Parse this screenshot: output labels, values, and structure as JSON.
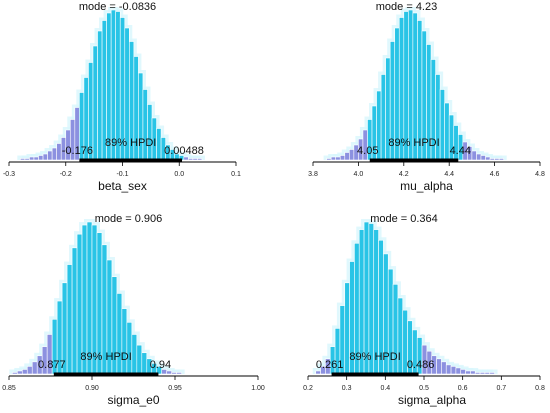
{
  "colors": {
    "bar": "#29C4E6",
    "bar_edge": "#ffffff",
    "tail": "#8C91E0",
    "glow": "#D8F6FC",
    "hpdi_bar": "#000000",
    "axis": "#000000"
  },
  "chart_data": [
    {
      "type": "bar",
      "xlabel": "beta_sex",
      "xlim": [
        -0.3,
        0.1
      ],
      "xticks": [
        "-0.3",
        "-0.2",
        "-0.1",
        "0.0",
        "0.1"
      ],
      "mode_label": "mode = -0.0836",
      "hpdi_label": "89% HPDI",
      "hpdi_low": -0.176,
      "hpdi_high": 0.00488,
      "hpdi_low_label": "-0.176",
      "hpdi_high_label": "0.00488",
      "bins": {
        "start": -0.28,
        "width": 0.008,
        "values": [
          1,
          1,
          2,
          2,
          3,
          4,
          6,
          8,
          11,
          15,
          20,
          27,
          35,
          45,
          55,
          65,
          76,
          86,
          93,
          98,
          100,
          99,
          95,
          88,
          79,
          69,
          58,
          47,
          37,
          28,
          21,
          15,
          10,
          7,
          4,
          3,
          2,
          1,
          1,
          1
        ]
      }
    },
    {
      "type": "bar",
      "xlabel": "mu_alpha",
      "xlim": [
        3.8,
        4.8
      ],
      "xticks": [
        "3.8",
        "4.0",
        "4.2",
        "4.4",
        "4.6",
        "4.8"
      ],
      "mode_label": "mode = 4.23",
      "hpdi_label": "89% HPDI",
      "hpdi_low": 4.05,
      "hpdi_high": 4.44,
      "hpdi_low_label": "4.05",
      "hpdi_high_label": "4.44",
      "bins": {
        "start": 3.86,
        "width": 0.02,
        "values": [
          1,
          2,
          2,
          3,
          5,
          7,
          10,
          14,
          20,
          27,
          36,
          46,
          57,
          68,
          79,
          88,
          95,
          99,
          100,
          98,
          93,
          86,
          77,
          67,
          57,
          47,
          38,
          30,
          23,
          17,
          12,
          9,
          6,
          4,
          3,
          2,
          1,
          1,
          1
        ]
      }
    },
    {
      "type": "bar",
      "xlabel": "sigma_e0",
      "xlim": [
        0.85,
        1.0
      ],
      "xticks": [
        "0.85",
        "0.90",
        "0.95",
        "1.00"
      ],
      "mode_label": "mode = 0.906",
      "hpdi_label": "89% HPDI",
      "hpdi_low": 0.877,
      "hpdi_high": 0.94,
      "hpdi_low_label": "0.877",
      "hpdi_high_label": "0.94",
      "bins": {
        "start": 0.852,
        "width": 0.003,
        "values": [
          1,
          2,
          3,
          5,
          8,
          12,
          18,
          26,
          36,
          48,
          60,
          72,
          83,
          92,
          98,
          100,
          98,
          93,
          85,
          75,
          64,
          53,
          43,
          34,
          26,
          19,
          14,
          10,
          7,
          5,
          3,
          2,
          1,
          1
        ]
      }
    },
    {
      "type": "bar",
      "xlabel": "sigma_alpha",
      "xlim": [
        0.2,
        0.8
      ],
      "xticks": [
        "0.2",
        "0.3",
        "0.4",
        "0.5",
        "0.6",
        "0.7",
        "0.8"
      ],
      "mode_label": "mode = 0.364",
      "hpdi_label": "89% HPDI",
      "hpdi_low": 0.261,
      "hpdi_high": 0.486,
      "hpdi_low_label": "0.261",
      "hpdi_high_label": "0.486",
      "bins": {
        "start": 0.22,
        "width": 0.0125,
        "values": [
          2,
          5,
          10,
          18,
          30,
          45,
          60,
          74,
          86,
          95,
          100,
          99,
          95,
          88,
          79,
          69,
          59,
          50,
          42,
          35,
          29,
          24,
          19,
          15,
          12,
          10,
          8,
          6,
          5,
          4,
          3,
          2,
          2,
          1,
          1,
          1,
          1
        ]
      }
    }
  ]
}
